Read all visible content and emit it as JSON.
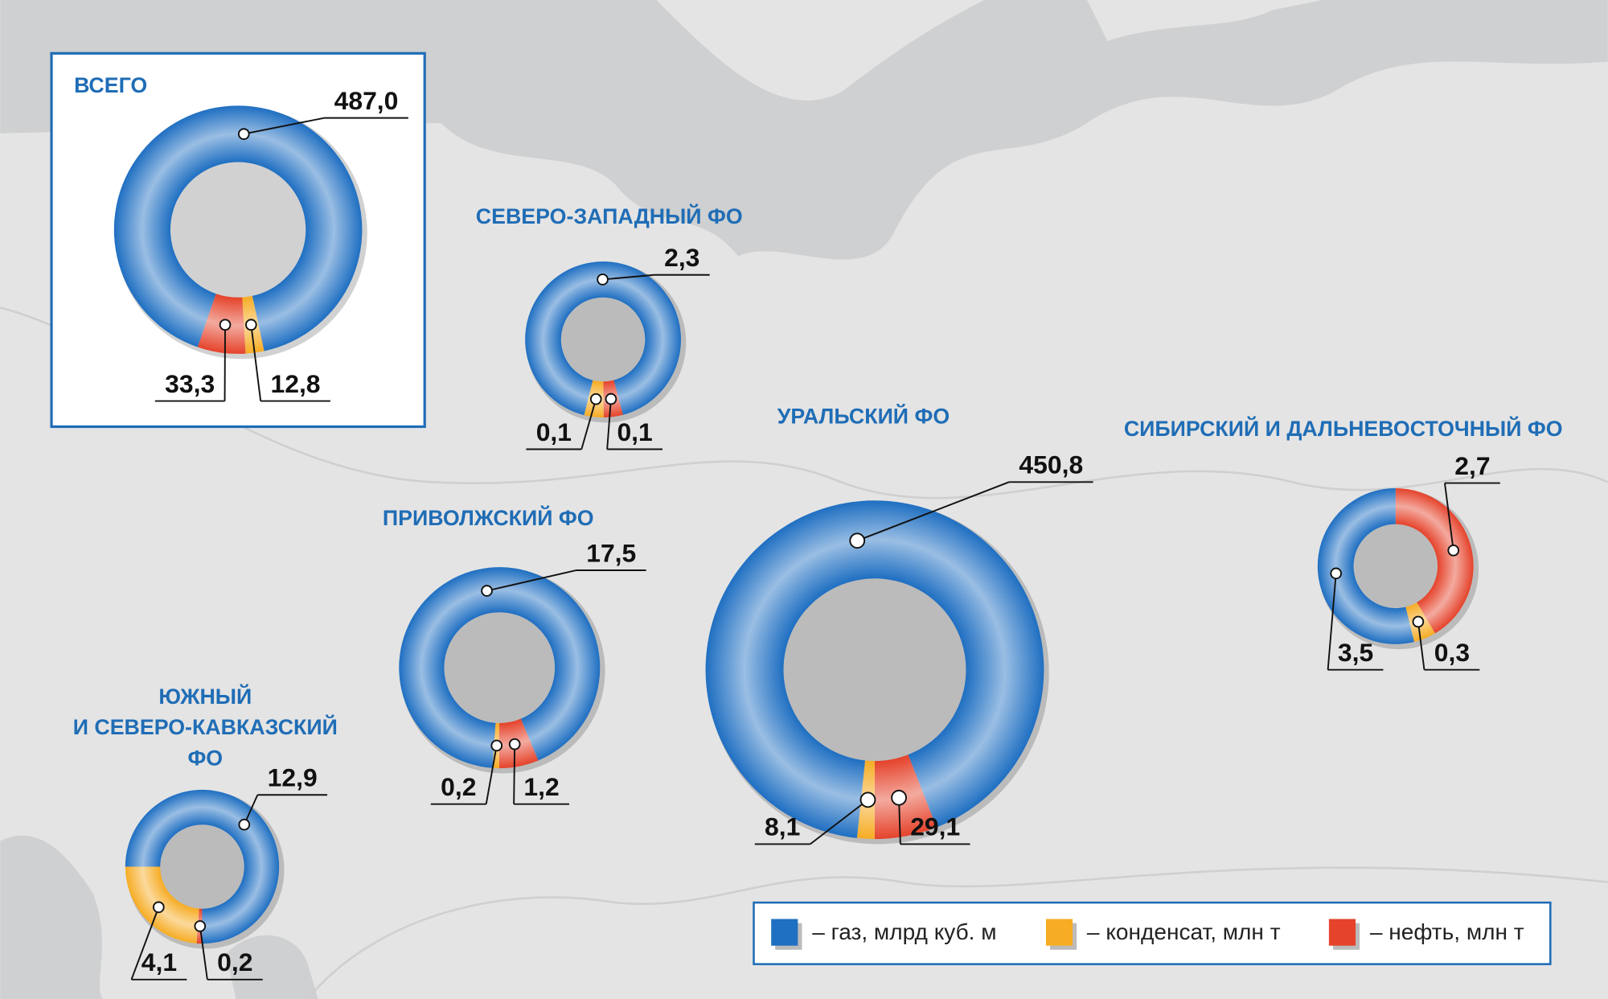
{
  "chart_data": [
    {
      "type": "donut",
      "title": "ВСЕГО",
      "values": [
        487,
        12.8,
        33.3
      ],
      "value_labels": [
        "487,0",
        "12,8",
        "33,3"
      ]
    },
    {
      "type": "donut",
      "title": "СЕВЕРО-ЗАПАДНЫЙ ФО",
      "values": [
        2.3,
        0.1,
        0.1
      ],
      "value_labels": [
        "2,3",
        "0,1",
        "0,1"
      ]
    },
    {
      "type": "donut",
      "title": "ПРИВОЛЖСКИЙ ФО",
      "values": [
        17.5,
        0.2,
        1.2
      ],
      "value_labels": [
        "17,5",
        "0,2",
        "1,2"
      ]
    },
    {
      "type": "donut",
      "title": "УРАЛЬСКИЙ ФО",
      "values": [
        450.8,
        8.1,
        29.1
      ],
      "value_labels": [
        "450,8",
        "8,1",
        "29,1"
      ]
    },
    {
      "type": "donut",
      "title": "СИБИРСКИЙ И ДАЛЬНЕВОСТОЧНЫЙ ФО",
      "values": [
        3.5,
        0.3,
        2.7
      ],
      "value_labels": [
        "3,5",
        "0,3",
        "2,7"
      ]
    },
    {
      "type": "donut",
      "title": [
        "ЮЖНЫЙ",
        "И СЕВЕРО-КАВКАЗСКИЙ",
        "ФО"
      ],
      "values": [
        12.9,
        4.1,
        0.2
      ],
      "value_labels": [
        "12,9",
        "4,1",
        "0,2"
      ]
    }
  ],
  "legend": {
    "entries": [
      {
        "name": "– газ, млрд куб. м",
        "color": "#1f6fc2"
      },
      {
        "name": "– конденсат, млн т",
        "color": "#f6ac24"
      },
      {
        "name": "– нефть, млн т",
        "color": "#e5432b"
      }
    ]
  }
}
